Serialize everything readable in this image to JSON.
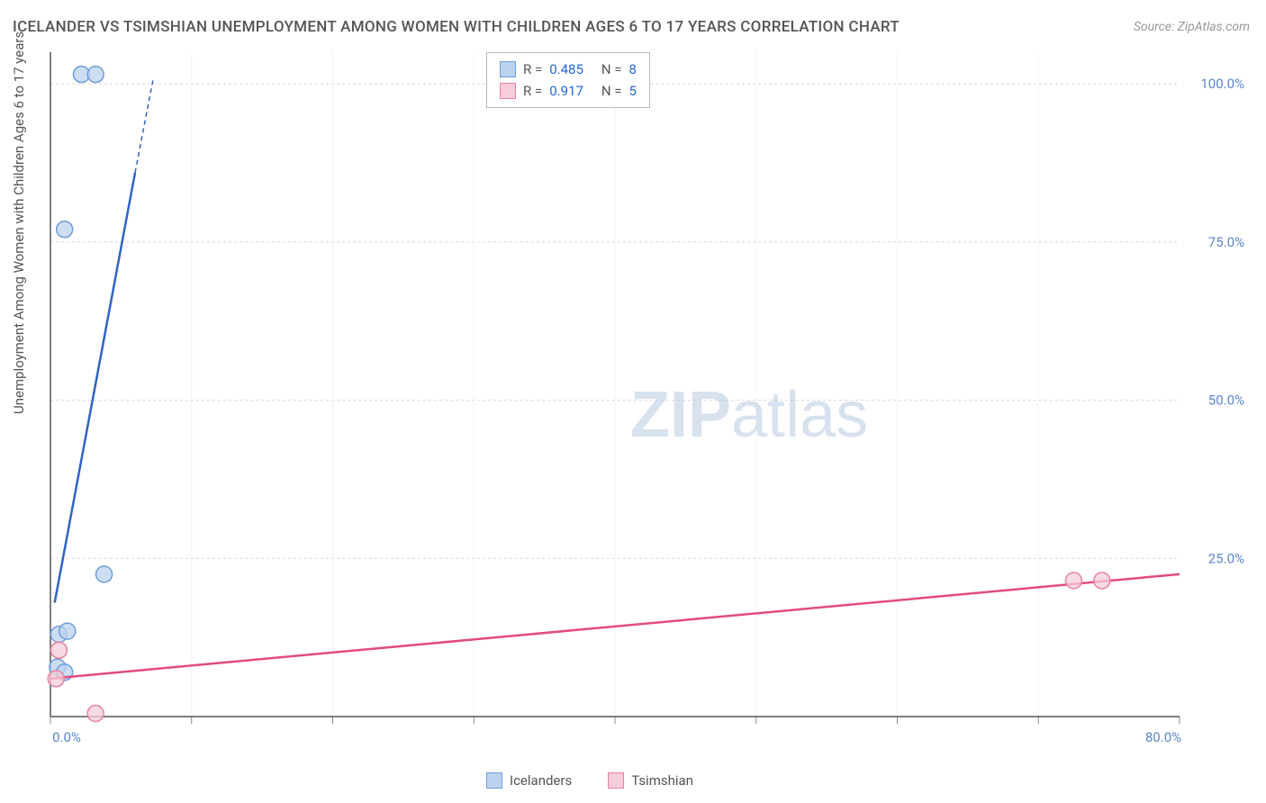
{
  "title": "ICELANDER VS TSIMSHIAN UNEMPLOYMENT AMONG WOMEN WITH CHILDREN AGES 6 TO 17 YEARS CORRELATION CHART",
  "source": "Source: ZipAtlas.com",
  "y_axis_label": "Unemployment Among Women with Children Ages 6 to 17 years",
  "watermark_a": "ZIP",
  "watermark_b": "atlas",
  "chart": {
    "type": "scatter",
    "xlim": [
      0,
      80
    ],
    "ylim": [
      0,
      105
    ],
    "x_ticks": [
      0,
      10,
      20,
      30,
      40,
      50,
      60,
      70,
      80
    ],
    "x_tick_labels": [
      "0.0%",
      "",
      "",
      "",
      "",
      "",
      "",
      "",
      "80.0%"
    ],
    "y_ticks": [
      25,
      50,
      75,
      100
    ],
    "y_tick_labels": [
      "25.0%",
      "50.0%",
      "75.0%",
      "100.0%"
    ],
    "grid_color": "#d7d7d7",
    "axis_color": "#555555",
    "tick_color": "#888888",
    "y_label_color": "#5b86c9",
    "x_label_color": "#5b86c9",
    "background_color": "#ffffff",
    "series": [
      {
        "name": "Icelanders",
        "color_fill": "#bcd3ef",
        "color_stroke": "#6f9edb",
        "line_color": "#2f64c0",
        "marker_radius": 9,
        "marker_opacity": 0.75,
        "line_width": 2.5,
        "R": "0.485",
        "N": "8",
        "points": [
          {
            "x": 2.2,
            "y": 101.5
          },
          {
            "x": 3.2,
            "y": 101.5
          },
          {
            "x": 1.0,
            "y": 77.0
          },
          {
            "x": 3.8,
            "y": 22.5
          },
          {
            "x": 0.6,
            "y": 13.0
          },
          {
            "x": 1.2,
            "y": 13.5
          },
          {
            "x": 0.5,
            "y": 7.8
          },
          {
            "x": 1.0,
            "y": 7.0
          }
        ],
        "trend_line": {
          "x1": 0.3,
          "y1": 18,
          "x2": 6.0,
          "y2": 86,
          "dash_extension": {
            "x2": 7.3,
            "y2": 101
          }
        }
      },
      {
        "name": "Tsimshian",
        "color_fill": "#f6cdd9",
        "color_stroke": "#e681a3",
        "line_color": "#e24a84",
        "marker_radius": 9,
        "marker_opacity": 0.75,
        "line_width": 2.5,
        "R": "0.917",
        "N": "5",
        "points": [
          {
            "x": 0.6,
            "y": 10.5
          },
          {
            "x": 0.4,
            "y": 6.0
          },
          {
            "x": 3.2,
            "y": 0.5
          },
          {
            "x": 72.5,
            "y": 21.5
          },
          {
            "x": 74.5,
            "y": 21.5
          }
        ],
        "trend_line": {
          "x1": 0,
          "y1": 6,
          "x2": 80,
          "y2": 22.5
        }
      }
    ]
  },
  "legend_bottom": [
    {
      "label": "Icelanders",
      "fill": "#bcd3ef",
      "stroke": "#6f9edb"
    },
    {
      "label": "Tsimshian",
      "fill": "#f6cdd9",
      "stroke": "#e681a3"
    }
  ]
}
